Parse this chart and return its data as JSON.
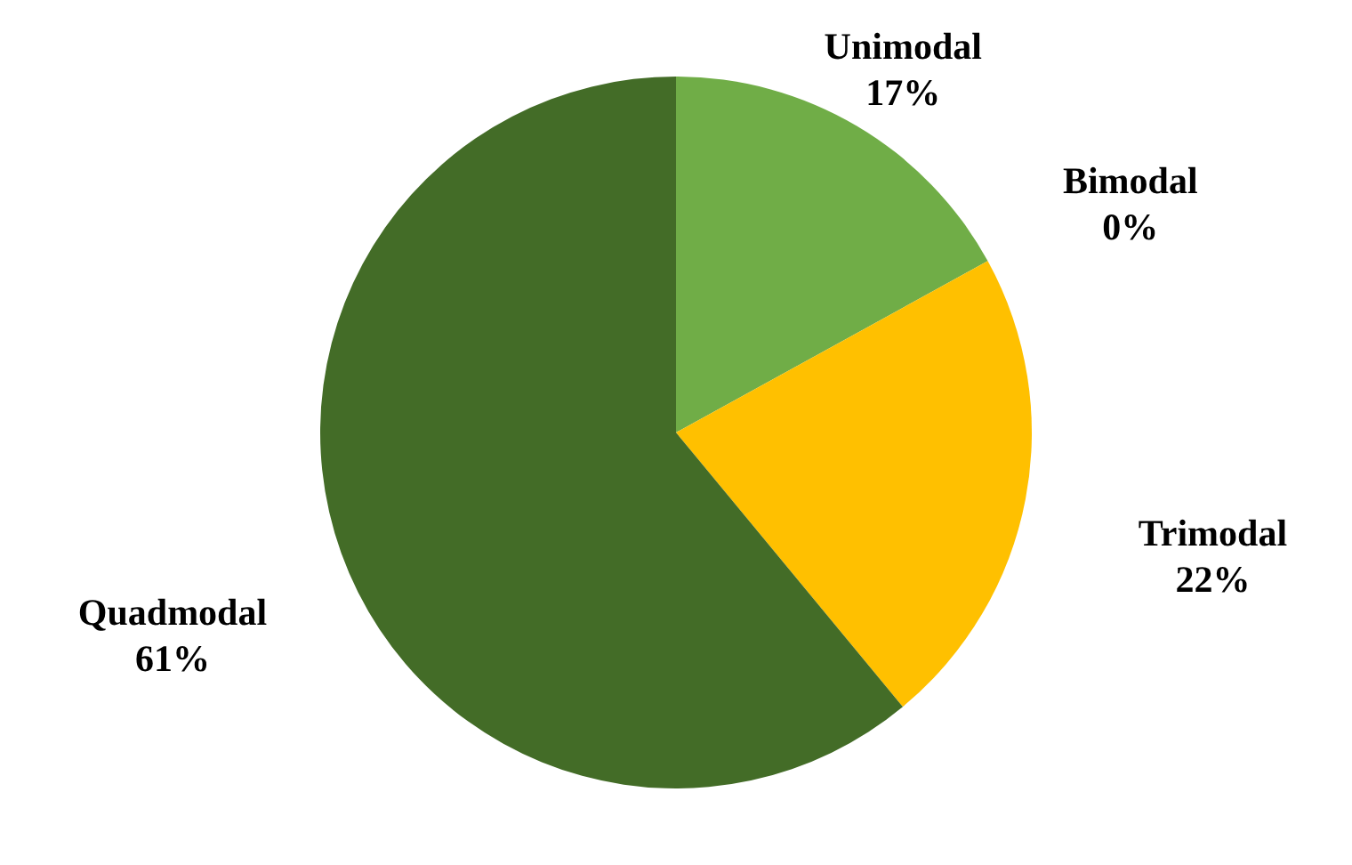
{
  "chart_data": {
    "type": "pie",
    "categories": [
      "Unimodal",
      "Bimodal",
      "Trimodal",
      "Quadmodal"
    ],
    "values": [
      17,
      0,
      22,
      61
    ],
    "value_labels": [
      "17%",
      "0%",
      "22%",
      "61%"
    ],
    "colors": [
      "#70ad47",
      "#a9d18e",
      "#ffc000",
      "#436c27"
    ]
  }
}
